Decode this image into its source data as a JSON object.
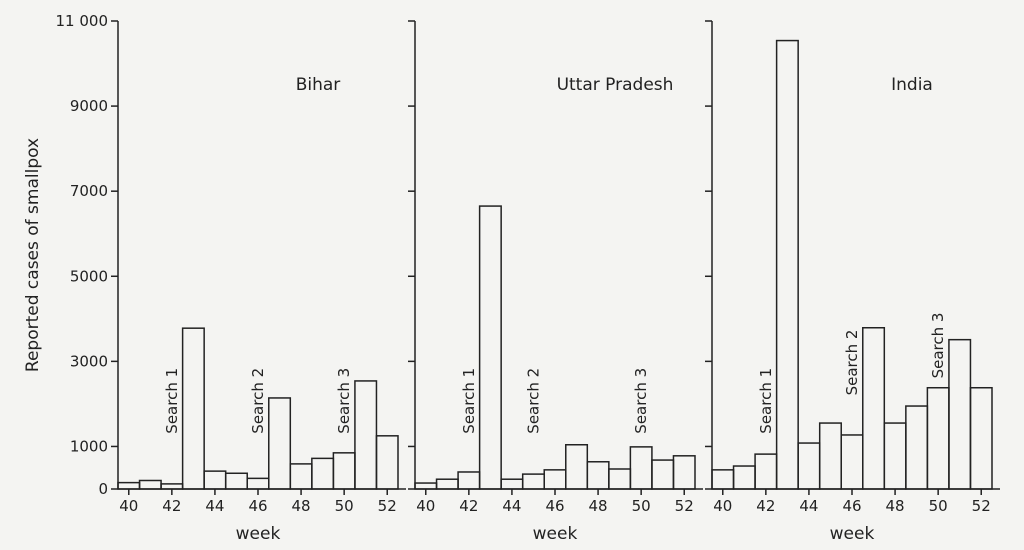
{
  "chart_data": [
    {
      "type": "bar",
      "title": "Bihar",
      "y_label": "Reported cases of smallpox",
      "x_label": "week",
      "x": [
        40,
        41,
        42,
        43,
        44,
        45,
        46,
        47,
        48,
        49,
        50,
        51,
        52
      ],
      "values": [
        150,
        200,
        120,
        3780,
        420,
        370,
        250,
        2140,
        590,
        720,
        850,
        2540,
        1250
      ],
      "xlim": [
        39.5,
        52.5
      ],
      "xticks": [
        40,
        42,
        44,
        46,
        48,
        50,
        52
      ],
      "ylim": [
        0,
        11000
      ],
      "yticks": [
        0,
        1000,
        3000,
        5000,
        7000,
        9000,
        {
          "value": 11000,
          "label": "11 000"
        }
      ],
      "annotations": [
        {
          "text": "Search 1",
          "x": 42,
          "y": 1300
        },
        {
          "text": "Search 2",
          "x": 46,
          "y": 1300
        },
        {
          "text": "Search 3",
          "x": 50,
          "y": 1300
        }
      ]
    },
    {
      "type": "bar",
      "title": "Uttar Pradesh",
      "x_label": "week",
      "x": [
        40,
        41,
        42,
        43,
        44,
        45,
        46,
        47,
        48,
        49,
        50,
        51,
        52
      ],
      "values": [
        140,
        230,
        400,
        6650,
        230,
        350,
        450,
        1040,
        640,
        470,
        990,
        680,
        780
      ],
      "xlim": [
        39.5,
        52.5
      ],
      "xticks": [
        40,
        42,
        44,
        46,
        48,
        50,
        52
      ],
      "ylim": [
        0,
        11000
      ],
      "annotations": [
        {
          "text": "Search 1",
          "x": 42,
          "y": 1300
        },
        {
          "text": "Search 2",
          "x": 45,
          "y": 1300
        },
        {
          "text": "Search 3",
          "x": 50,
          "y": 1300
        }
      ]
    },
    {
      "type": "bar",
      "title": "India",
      "x_label": "week",
      "x": [
        40,
        41,
        42,
        43,
        44,
        45,
        46,
        47,
        48,
        49,
        50,
        51,
        52
      ],
      "values": [
        450,
        540,
        820,
        10540,
        1080,
        1550,
        1270,
        3790,
        1550,
        1950,
        2380,
        3510,
        2380
      ],
      "xlim": [
        39.5,
        52.5
      ],
      "xticks": [
        40,
        42,
        44,
        46,
        48,
        50,
        52
      ],
      "ylim": [
        0,
        11000
      ],
      "annotations": [
        {
          "text": "Search 1",
          "x": 42,
          "y": 1300
        },
        {
          "text": "Search 2",
          "x": 46,
          "y": 2200
        },
        {
          "text": "Search 3",
          "x": 50,
          "y": 2600
        }
      ]
    }
  ]
}
